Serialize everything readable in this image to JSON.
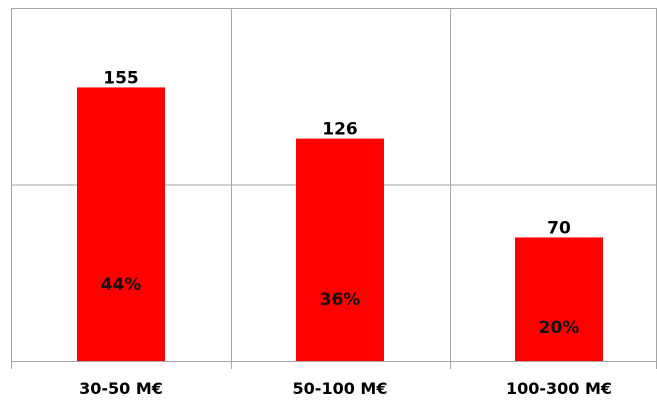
{
  "chart_data": {
    "type": "bar",
    "title": "",
    "xlabel": "",
    "ylabel": "",
    "categories": [
      "30-50 M€",
      "50-100 M€",
      "100-300 M€"
    ],
    "values": [
      155,
      126,
      70
    ],
    "percent_labels": [
      "44%",
      "36%",
      "20%"
    ],
    "ylim": [
      0,
      200
    ],
    "grid": true,
    "legend": "none",
    "bar_color": "#ff0000",
    "grid_color": "#a6a6a6"
  }
}
